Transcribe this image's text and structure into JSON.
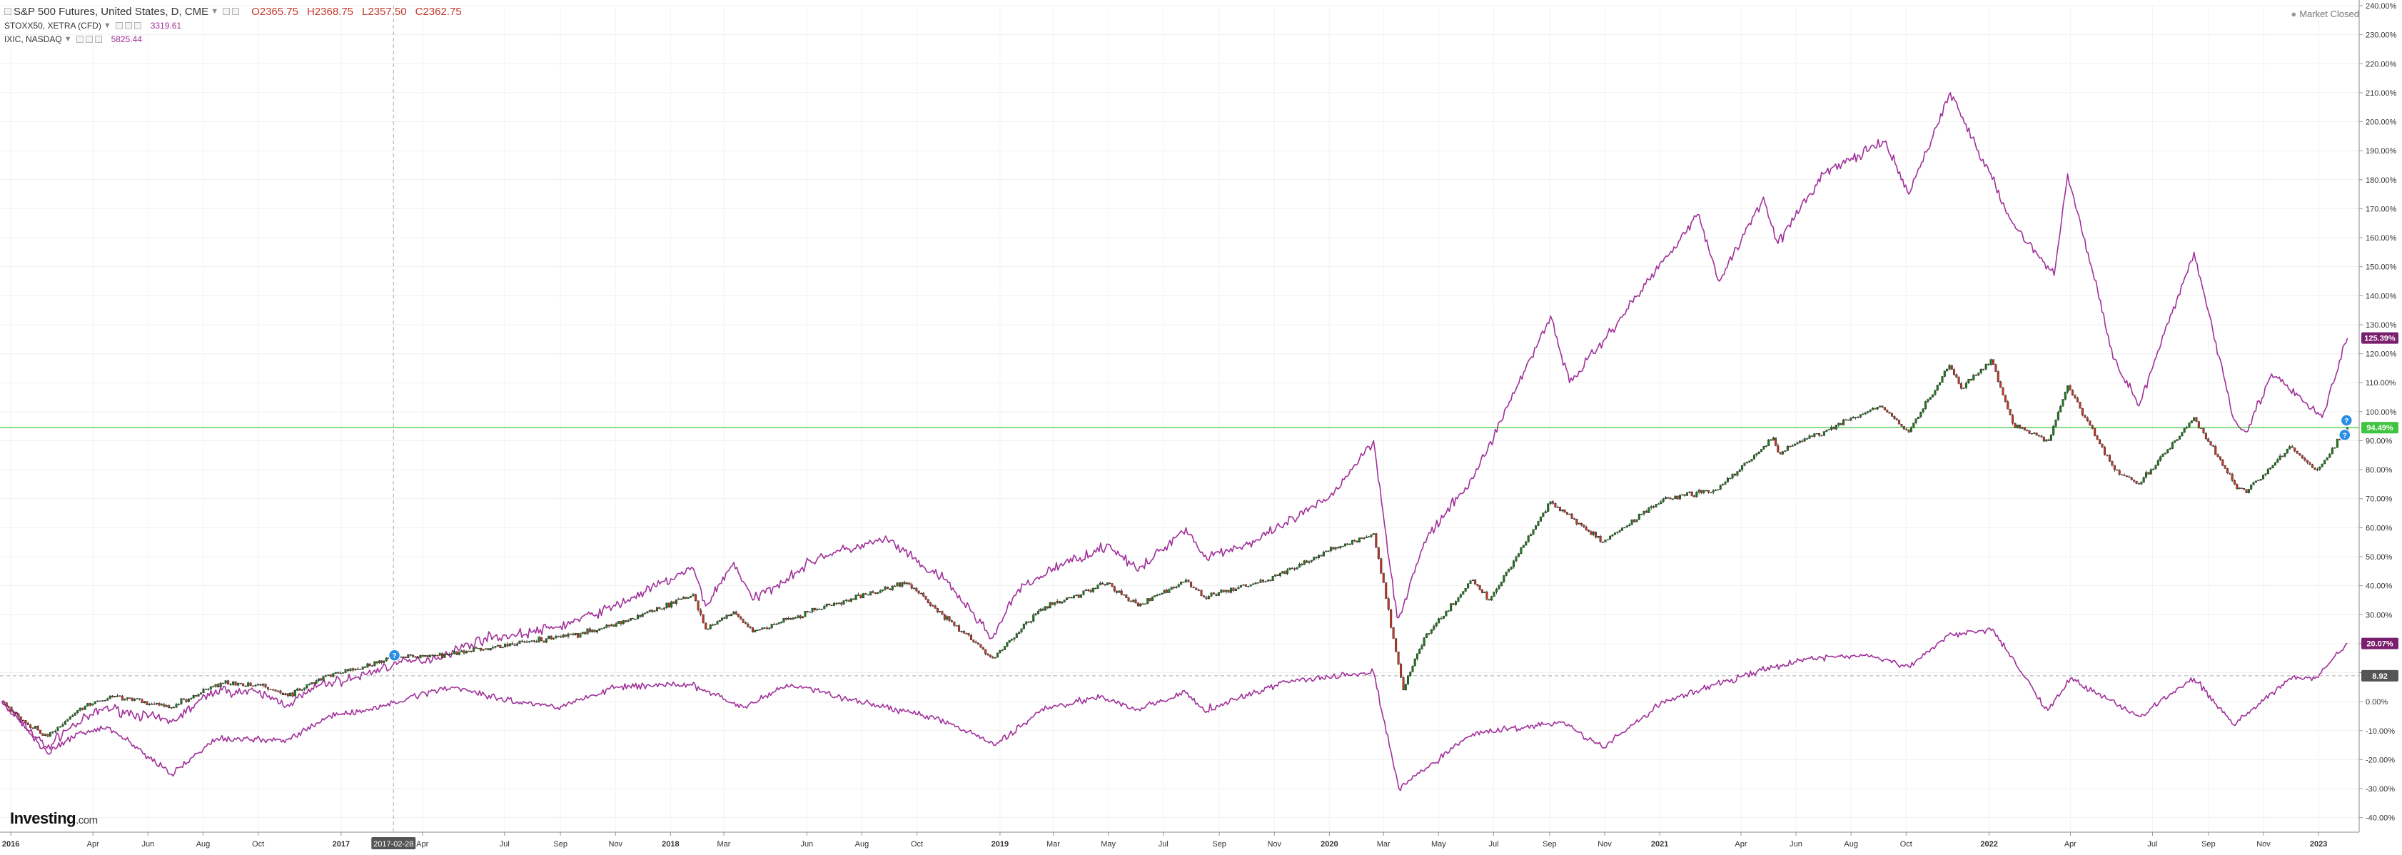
{
  "header": {
    "main_symbol": "S&P 500 Futures, United States, D, CME",
    "ohlc": {
      "open": "O2365.75",
      "high": "H2368.75",
      "low": "L2357.50",
      "close": "C2362.75"
    },
    "compare_1": {
      "name": "STOXX50, XETRA (CFD)",
      "value": "3319.61"
    },
    "compare_2": {
      "name": "IXIC, NASDAQ",
      "value": "5825.44"
    }
  },
  "status": "Market Closed",
  "logo": {
    "brand": "Investing",
    "suffix": ".com"
  },
  "colors": {
    "candle_up": "#1e7a1e",
    "candle_down": "#c0392b",
    "compare_line": "#a0309a",
    "price_line": "#5fd35f",
    "axis_text": "#333333"
  },
  "chart_data": {
    "type": "line",
    "y_axis": {
      "unit": "%",
      "ylim": [
        -45,
        240
      ],
      "ticks": [
        "-40.00%",
        "-30.00%",
        "-20.00%",
        "-10.00%",
        "0.00%",
        "10.00%",
        "20.00%",
        "30.00%",
        "40.00%",
        "50.00%",
        "60.00%",
        "70.00%",
        "80.00%",
        "90.00%",
        "100.00%",
        "110.00%",
        "120.00%",
        "130.00%",
        "140.00%",
        "150.00%",
        "160.00%",
        "170.00%",
        "180.00%",
        "190.00%",
        "200.00%",
        "210.00%",
        "220.00%",
        "230.00%",
        "240.00%"
      ]
    },
    "x_axis": {
      "range": [
        "2015-12-20",
        "2023-02-15"
      ],
      "ticks": [
        {
          "date": "2016-01-01",
          "label": "2016"
        },
        {
          "date": "2016-04-01",
          "label": "Apr"
        },
        {
          "date": "2016-06-01",
          "label": "Jun"
        },
        {
          "date": "2016-08-01",
          "label": "Aug"
        },
        {
          "date": "2016-10-01",
          "label": "Oct"
        },
        {
          "date": "2017-01-01",
          "label": "2017"
        },
        {
          "date": "2017-04-01",
          "label": "Apr"
        },
        {
          "date": "2017-07-01",
          "label": "Jul"
        },
        {
          "date": "2017-09-01",
          "label": "Sep"
        },
        {
          "date": "2017-11-01",
          "label": "Nov"
        },
        {
          "date": "2018-01-01",
          "label": "2018"
        },
        {
          "date": "2018-03-01",
          "label": "Mar"
        },
        {
          "date": "2018-06-01",
          "label": "Jun"
        },
        {
          "date": "2018-08-01",
          "label": "Aug"
        },
        {
          "date": "2018-10-01",
          "label": "Oct"
        },
        {
          "date": "2019-01-01",
          "label": "2019"
        },
        {
          "date": "2019-03-01",
          "label": "Mar"
        },
        {
          "date": "2019-05-01",
          "label": "May"
        },
        {
          "date": "2019-07-01",
          "label": "Jul"
        },
        {
          "date": "2019-09-01",
          "label": "Sep"
        },
        {
          "date": "2019-11-01",
          "label": "Nov"
        },
        {
          "date": "2020-01-01",
          "label": "2020"
        },
        {
          "date": "2020-03-01",
          "label": "Mar"
        },
        {
          "date": "2020-05-01",
          "label": "May"
        },
        {
          "date": "2020-07-01",
          "label": "Jul"
        },
        {
          "date": "2020-09-01",
          "label": "Sep"
        },
        {
          "date": "2020-11-01",
          "label": "Nov"
        },
        {
          "date": "2021-01-01",
          "label": "2021"
        },
        {
          "date": "2021-04-01",
          "label": "Apr"
        },
        {
          "date": "2021-06-01",
          "label": "Jun"
        },
        {
          "date": "2021-08-01",
          "label": "Aug"
        },
        {
          "date": "2021-10-01",
          "label": "Oct"
        },
        {
          "date": "2022-01-01",
          "label": "2022"
        },
        {
          "date": "2022-04-01",
          "label": "Apr"
        },
        {
          "date": "2022-07-01",
          "label": "Jul"
        },
        {
          "date": "2022-09-01",
          "label": "Sep"
        },
        {
          "date": "2022-11-01",
          "label": "Nov"
        },
        {
          "date": "2023-01-01",
          "label": "2023"
        }
      ]
    },
    "crosshair": {
      "date": "2017-02-28",
      "label": "2017-02-28",
      "value": 8.92,
      "value_label": "8.92"
    },
    "price_line": {
      "value": 94.49,
      "label": "94.49%"
    },
    "series": [
      {
        "name": "IXIC, NASDAQ",
        "style": "line",
        "color": "#a0309a",
        "last_label": "125.39%",
        "points": [
          [
            "2015-12-22",
            0
          ],
          [
            "2016-01-10",
            -6
          ],
          [
            "2016-02-10",
            -16
          ],
          [
            "2016-03-01",
            -10
          ],
          [
            "2016-04-15",
            -2
          ],
          [
            "2016-06-27",
            -7
          ],
          [
            "2016-08-15",
            4
          ],
          [
            "2016-10-01",
            3
          ],
          [
            "2016-11-03",
            -1
          ],
          [
            "2016-12-10",
            6
          ],
          [
            "2017-01-15",
            8
          ],
          [
            "2017-02-28",
            13
          ],
          [
            "2017-04-15",
            15
          ],
          [
            "2017-06-10",
            22
          ],
          [
            "2017-07-15",
            23
          ],
          [
            "2017-09-01",
            26
          ],
          [
            "2017-11-01",
            33
          ],
          [
            "2018-01-26",
            46
          ],
          [
            "2018-02-09",
            33
          ],
          [
            "2018-03-12",
            48
          ],
          [
            "2018-04-02",
            35
          ],
          [
            "2018-06-15",
            50
          ],
          [
            "2018-08-29",
            56
          ],
          [
            "2018-10-10",
            46
          ],
          [
            "2018-11-01",
            42
          ],
          [
            "2018-12-24",
            22
          ],
          [
            "2019-01-20",
            38
          ],
          [
            "2019-03-01",
            46
          ],
          [
            "2019-05-03",
            54
          ],
          [
            "2019-06-03",
            45
          ],
          [
            "2019-07-26",
            60
          ],
          [
            "2019-08-15",
            50
          ],
          [
            "2019-10-10",
            55
          ],
          [
            "2019-12-31",
            70
          ],
          [
            "2020-02-19",
            90
          ],
          [
            "2020-03-16",
            29
          ],
          [
            "2020-03-23",
            33
          ],
          [
            "2020-04-15",
            55
          ],
          [
            "2020-06-10",
            78
          ],
          [
            "2020-09-02",
            133
          ],
          [
            "2020-09-23",
            110
          ],
          [
            "2020-11-01",
            125
          ],
          [
            "2021-02-12",
            168
          ],
          [
            "2021-03-08",
            145
          ],
          [
            "2021-04-26",
            174
          ],
          [
            "2021-05-12",
            158
          ],
          [
            "2021-07-01",
            182
          ],
          [
            "2021-09-07",
            193
          ],
          [
            "2021-10-04",
            175
          ],
          [
            "2021-11-19",
            210
          ],
          [
            "2021-12-20",
            190
          ],
          [
            "2022-01-27",
            165
          ],
          [
            "2022-03-14",
            147
          ],
          [
            "2022-03-29",
            182
          ],
          [
            "2022-05-20",
            118
          ],
          [
            "2022-06-16",
            102
          ],
          [
            "2022-08-16",
            155
          ],
          [
            "2022-09-30",
            97
          ],
          [
            "2022-10-13",
            93
          ],
          [
            "2022-11-10",
            113
          ],
          [
            "2022-12-28",
            100
          ],
          [
            "2023-01-05",
            98
          ],
          [
            "2023-02-02",
            125.39
          ]
        ]
      },
      {
        "name": "S&P 500 Futures",
        "style": "candles",
        "color": "#1e7a1e",
        "last_label": "94.49%",
        "points": [
          [
            "2015-12-22",
            0
          ],
          [
            "2016-01-20",
            -8
          ],
          [
            "2016-02-11",
            -12
          ],
          [
            "2016-03-15",
            -3
          ],
          [
            "2016-04-20",
            2
          ],
          [
            "2016-06-27",
            -2
          ],
          [
            "2016-08-15",
            6
          ],
          [
            "2016-10-01",
            6
          ],
          [
            "2016-11-03",
            2
          ],
          [
            "2016-12-15",
            9
          ],
          [
            "2017-01-25",
            12
          ],
          [
            "2017-02-28",
            15
          ],
          [
            "2017-04-15",
            16
          ],
          [
            "2017-07-15",
            20
          ],
          [
            "2017-09-15",
            23
          ],
          [
            "2017-11-15",
            28
          ],
          [
            "2018-01-26",
            37
          ],
          [
            "2018-02-09",
            25
          ],
          [
            "2018-03-12",
            31
          ],
          [
            "2018-04-02",
            24
          ],
          [
            "2018-06-15",
            32
          ],
          [
            "2018-09-20",
            41
          ],
          [
            "2018-10-29",
            30
          ],
          [
            "2018-12-24",
            15
          ],
          [
            "2019-02-15",
            32
          ],
          [
            "2019-04-30",
            41
          ],
          [
            "2019-06-03",
            33
          ],
          [
            "2019-07-26",
            42
          ],
          [
            "2019-08-15",
            36
          ],
          [
            "2019-10-25",
            42
          ],
          [
            "2019-12-31",
            52
          ],
          [
            "2020-02-19",
            58
          ],
          [
            "2020-03-23",
            4
          ],
          [
            "2020-04-15",
            22
          ],
          [
            "2020-06-08",
            42
          ],
          [
            "2020-06-26",
            35
          ],
          [
            "2020-09-02",
            69
          ],
          [
            "2020-10-30",
            55
          ],
          [
            "2021-01-05",
            70
          ],
          [
            "2021-03-04",
            73
          ],
          [
            "2021-05-07",
            91
          ],
          [
            "2021-05-12",
            86
          ],
          [
            "2021-09-02",
            102
          ],
          [
            "2021-10-04",
            93
          ],
          [
            "2021-11-18",
            116
          ],
          [
            "2021-12-01",
            108
          ],
          [
            "2022-01-03",
            118
          ],
          [
            "2022-01-27",
            96
          ],
          [
            "2022-03-08",
            90
          ],
          [
            "2022-03-29",
            109
          ],
          [
            "2022-05-20",
            80
          ],
          [
            "2022-06-16",
            75
          ],
          [
            "2022-08-16",
            98
          ],
          [
            "2022-09-30",
            75
          ],
          [
            "2022-10-13",
            72
          ],
          [
            "2022-11-30",
            88
          ],
          [
            "2022-12-28",
            80
          ],
          [
            "2023-01-05",
            82
          ],
          [
            "2023-02-02",
            94.49
          ]
        ]
      },
      {
        "name": "STOXX50, XETRA (CFD)",
        "style": "line",
        "color": "#a0309a",
        "last_label": "20.07%",
        "points": [
          [
            "2015-12-22",
            0
          ],
          [
            "2016-01-20",
            -10
          ],
          [
            "2016-02-11",
            -18
          ],
          [
            "2016-03-15",
            -11
          ],
          [
            "2016-04-20",
            -9
          ],
          [
            "2016-06-27",
            -25
          ],
          [
            "2016-08-15",
            -13
          ],
          [
            "2016-11-03",
            -13
          ],
          [
            "2016-12-20",
            -5
          ],
          [
            "2017-02-01",
            -3
          ],
          [
            "2017-04-15",
            4
          ],
          [
            "2017-05-05",
            5
          ],
          [
            "2017-07-15",
            0
          ],
          [
            "2017-08-29",
            -2
          ],
          [
            "2017-11-01",
            5
          ],
          [
            "2018-01-23",
            6
          ],
          [
            "2018-03-23",
            -2
          ],
          [
            "2018-05-15",
            6
          ],
          [
            "2018-07-15",
            1
          ],
          [
            "2018-10-26",
            -6
          ],
          [
            "2018-12-27",
            -15
          ],
          [
            "2019-02-15",
            -3
          ],
          [
            "2019-04-23",
            2
          ],
          [
            "2019-05-31",
            -3
          ],
          [
            "2019-07-26",
            3
          ],
          [
            "2019-08-15",
            -3
          ],
          [
            "2019-11-15",
            7
          ],
          [
            "2020-02-19",
            10
          ],
          [
            "2020-03-18",
            -30
          ],
          [
            "2020-06-08",
            -11
          ],
          [
            "2020-09-15",
            -7
          ],
          [
            "2020-10-30",
            -16
          ],
          [
            "2021-01-05",
            0
          ],
          [
            "2021-04-15",
            10
          ],
          [
            "2021-06-15",
            15
          ],
          [
            "2021-08-15",
            16
          ],
          [
            "2021-10-04",
            12
          ],
          [
            "2021-11-17",
            23
          ],
          [
            "2022-01-05",
            25
          ],
          [
            "2022-03-07",
            -3
          ],
          [
            "2022-04-01",
            8
          ],
          [
            "2022-06-16",
            -5
          ],
          [
            "2022-08-16",
            8
          ],
          [
            "2022-09-29",
            -8
          ],
          [
            "2022-11-30",
            8
          ],
          [
            "2022-12-28",
            8
          ],
          [
            "2023-02-02",
            20.07
          ]
        ]
      }
    ],
    "annotations": [
      {
        "date": "2017-03-01",
        "value": 16,
        "text": "?"
      },
      {
        "date": "2023-01-30",
        "value": 92,
        "text": "?"
      },
      {
        "date": "2023-02-01",
        "value": 97,
        "text": "?"
      }
    ]
  }
}
